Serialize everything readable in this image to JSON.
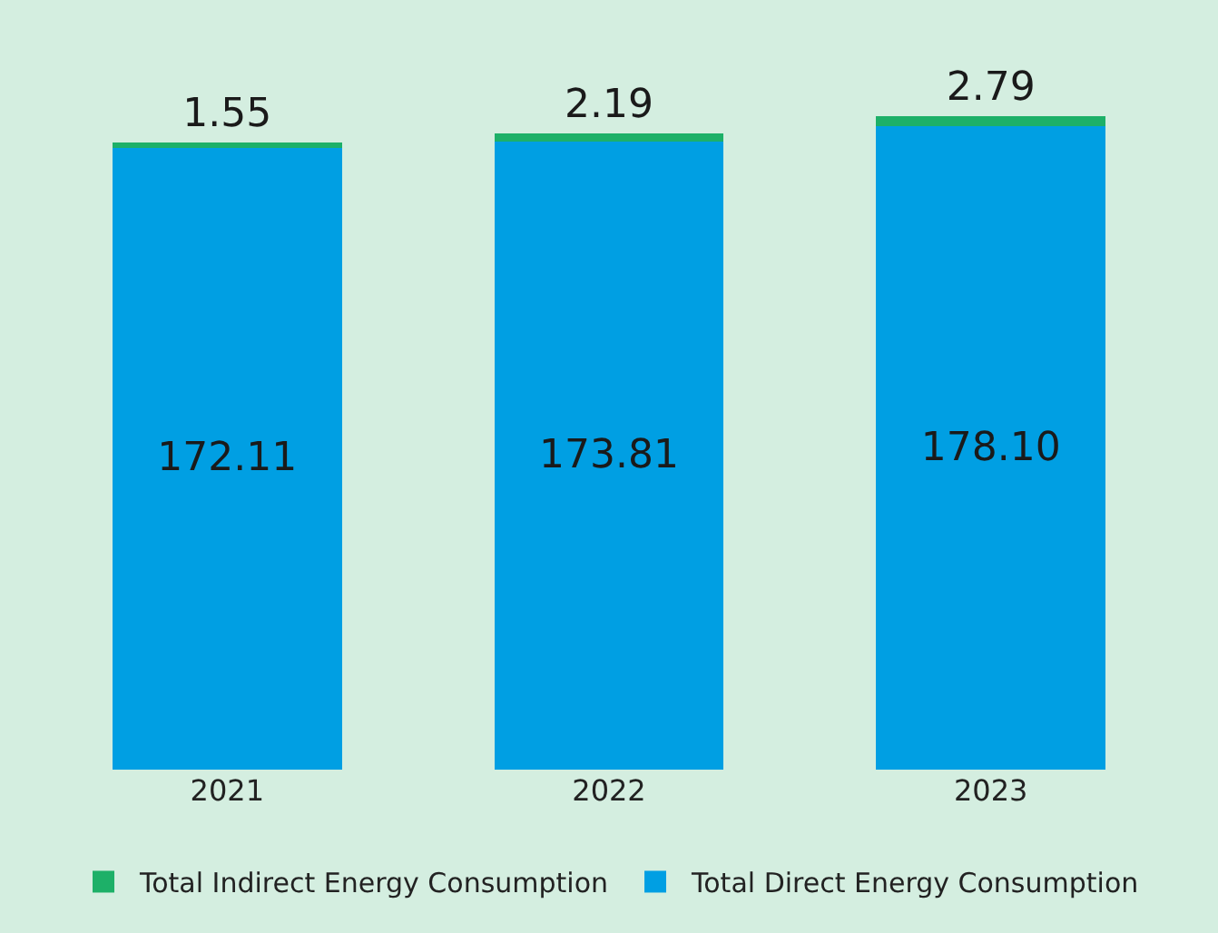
{
  "chart_data": {
    "type": "bar",
    "stacked": true,
    "categories": [
      "2021",
      "2022",
      "2023"
    ],
    "series": [
      {
        "name": "Total Direct Energy Consumption",
        "color": "#009fe3",
        "values": [
          172.11,
          173.81,
          178.1
        ],
        "value_labels": [
          "172.11",
          "173.81",
          "178.10"
        ]
      },
      {
        "name": "Total Indirect Energy Consumption",
        "color": "#1db068",
        "values": [
          1.55,
          2.19,
          2.79
        ],
        "value_labels": [
          "1.55",
          "2.19",
          "2.79"
        ]
      }
    ],
    "legend": "bottom",
    "grid": false,
    "tick_labels": "x"
  }
}
